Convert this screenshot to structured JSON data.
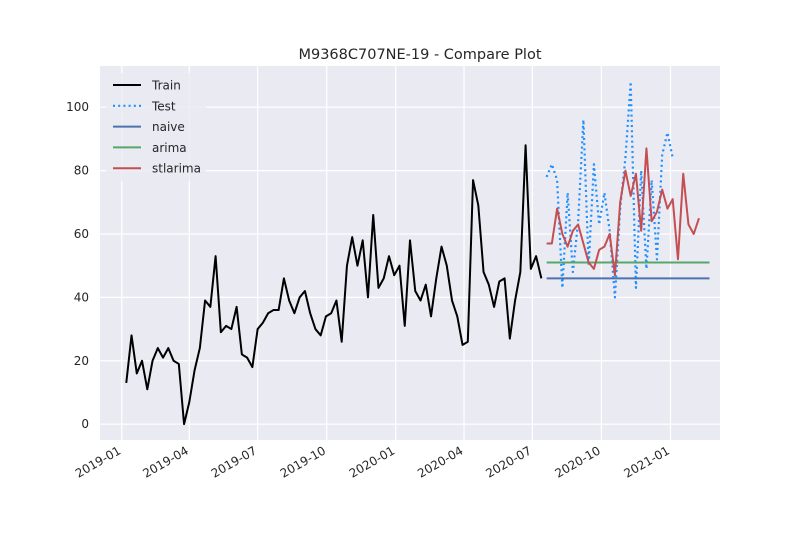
{
  "chart_data": {
    "type": "line",
    "title": "M9368C707NE-19 - Compare Plot",
    "xlabel": "",
    "ylabel": "",
    "x_axis_type": "date",
    "xlim": [
      "2018-12-03",
      "2021-03-08"
    ],
    "ylim": [
      -5,
      113
    ],
    "xticks": [
      {
        "date": "2019-01-01",
        "label": "2019-01"
      },
      {
        "date": "2019-04-01",
        "label": "2019-04"
      },
      {
        "date": "2019-07-01",
        "label": "2019-07"
      },
      {
        "date": "2019-10-01",
        "label": "2019-10"
      },
      {
        "date": "2020-01-01",
        "label": "2020-01"
      },
      {
        "date": "2020-04-01",
        "label": "2020-04"
      },
      {
        "date": "2020-07-01",
        "label": "2020-07"
      },
      {
        "date": "2020-10-01",
        "label": "2020-10"
      },
      {
        "date": "2021-01-01",
        "label": "2021-01"
      }
    ],
    "yticks": [
      0,
      20,
      40,
      60,
      80,
      100
    ],
    "grid": true,
    "legend_position": "top-left",
    "series": [
      {
        "name": "Train",
        "color": "#000000",
        "style": "solid",
        "points": [
          [
            "2019-01-07",
            13
          ],
          [
            "2019-01-14",
            28
          ],
          [
            "2019-01-21",
            16
          ],
          [
            "2019-01-28",
            20
          ],
          [
            "2019-02-04",
            11
          ],
          [
            "2019-02-11",
            20
          ],
          [
            "2019-02-18",
            24
          ],
          [
            "2019-02-25",
            21
          ],
          [
            "2019-03-04",
            24
          ],
          [
            "2019-03-11",
            20
          ],
          [
            "2019-03-18",
            19
          ],
          [
            "2019-03-25",
            0
          ],
          [
            "2019-04-01",
            7
          ],
          [
            "2019-04-08",
            17
          ],
          [
            "2019-04-15",
            24
          ],
          [
            "2019-04-22",
            39
          ],
          [
            "2019-04-29",
            37
          ],
          [
            "2019-05-06",
            53
          ],
          [
            "2019-05-13",
            29
          ],
          [
            "2019-05-20",
            31
          ],
          [
            "2019-05-27",
            30
          ],
          [
            "2019-06-03",
            37
          ],
          [
            "2019-06-10",
            22
          ],
          [
            "2019-06-17",
            21
          ],
          [
            "2019-06-24",
            18
          ],
          [
            "2019-07-01",
            30
          ],
          [
            "2019-07-08",
            32
          ],
          [
            "2019-07-15",
            35
          ],
          [
            "2019-07-22",
            36
          ],
          [
            "2019-07-29",
            36
          ],
          [
            "2019-08-05",
            46
          ],
          [
            "2019-08-12",
            39
          ],
          [
            "2019-08-19",
            35
          ],
          [
            "2019-08-26",
            40
          ],
          [
            "2019-09-02",
            42
          ],
          [
            "2019-09-09",
            35
          ],
          [
            "2019-09-16",
            30
          ],
          [
            "2019-09-23",
            28
          ],
          [
            "2019-09-30",
            34
          ],
          [
            "2019-10-07",
            35
          ],
          [
            "2019-10-14",
            39
          ],
          [
            "2019-10-21",
            26
          ],
          [
            "2019-10-28",
            50
          ],
          [
            "2019-11-04",
            59
          ],
          [
            "2019-11-11",
            50
          ],
          [
            "2019-11-18",
            58
          ],
          [
            "2019-11-25",
            40
          ],
          [
            "2019-12-02",
            66
          ],
          [
            "2019-12-09",
            43
          ],
          [
            "2019-12-16",
            46
          ],
          [
            "2019-12-23",
            53
          ],
          [
            "2019-12-30",
            47
          ],
          [
            "2020-01-06",
            50
          ],
          [
            "2020-01-13",
            31
          ],
          [
            "2020-01-20",
            58
          ],
          [
            "2020-01-27",
            42
          ],
          [
            "2020-02-03",
            39
          ],
          [
            "2020-02-10",
            44
          ],
          [
            "2020-02-17",
            34
          ],
          [
            "2020-02-24",
            46
          ],
          [
            "2020-03-02",
            56
          ],
          [
            "2020-03-09",
            50
          ],
          [
            "2020-03-16",
            39
          ],
          [
            "2020-03-23",
            34
          ],
          [
            "2020-03-30",
            25
          ],
          [
            "2020-04-06",
            26
          ],
          [
            "2020-04-13",
            77
          ],
          [
            "2020-04-20",
            69
          ],
          [
            "2020-04-27",
            48
          ],
          [
            "2020-05-04",
            44
          ],
          [
            "2020-05-11",
            37
          ],
          [
            "2020-05-18",
            45
          ],
          [
            "2020-05-25",
            46
          ],
          [
            "2020-06-01",
            27
          ],
          [
            "2020-06-08",
            39
          ],
          [
            "2020-06-15",
            48
          ],
          [
            "2020-06-22",
            88
          ],
          [
            "2020-06-29",
            49
          ],
          [
            "2020-07-06",
            53
          ],
          [
            "2020-07-13",
            46
          ]
        ]
      },
      {
        "name": "Test",
        "color": "#1e90ff",
        "style": "dotted",
        "points": [
          [
            "2020-07-20",
            78
          ],
          [
            "2020-07-27",
            82
          ],
          [
            "2020-08-03",
            77
          ],
          [
            "2020-08-10",
            43
          ],
          [
            "2020-08-17",
            73
          ],
          [
            "2020-08-24",
            48
          ],
          [
            "2020-08-31",
            64
          ],
          [
            "2020-09-07",
            96
          ],
          [
            "2020-09-14",
            50
          ],
          [
            "2020-09-21",
            82
          ],
          [
            "2020-09-28",
            63
          ],
          [
            "2020-10-05",
            73
          ],
          [
            "2020-10-12",
            61
          ],
          [
            "2020-10-19",
            40
          ],
          [
            "2020-10-26",
            68
          ],
          [
            "2020-11-02",
            84
          ],
          [
            "2020-11-09",
            108
          ],
          [
            "2020-11-16",
            43
          ],
          [
            "2020-11-23",
            80
          ],
          [
            "2020-11-30",
            49
          ],
          [
            "2020-12-07",
            77
          ],
          [
            "2020-12-14",
            52
          ],
          [
            "2020-12-21",
            85
          ],
          [
            "2020-12-28",
            92
          ],
          [
            "2021-01-04",
            84
          ]
        ]
      },
      {
        "name": "naive",
        "color": "#4c72b0",
        "style": "solid",
        "points": [
          [
            "2020-07-20",
            46
          ],
          [
            "2021-02-22",
            46
          ]
        ]
      },
      {
        "name": "arima",
        "color": "#55a868",
        "style": "solid",
        "points": [
          [
            "2020-07-20",
            51
          ],
          [
            "2021-02-22",
            51
          ]
        ]
      },
      {
        "name": "stlarima",
        "color": "#c44e52",
        "style": "solid",
        "points": [
          [
            "2020-07-20",
            57
          ],
          [
            "2020-07-27",
            57
          ],
          [
            "2020-08-03",
            68
          ],
          [
            "2020-08-10",
            60
          ],
          [
            "2020-08-17",
            56
          ],
          [
            "2020-08-24",
            61
          ],
          [
            "2020-08-31",
            63
          ],
          [
            "2020-09-07",
            57
          ],
          [
            "2020-09-14",
            51
          ],
          [
            "2020-09-21",
            49
          ],
          [
            "2020-09-28",
            55
          ],
          [
            "2020-10-05",
            56
          ],
          [
            "2020-10-12",
            60
          ],
          [
            "2020-10-19",
            47
          ],
          [
            "2020-10-26",
            70
          ],
          [
            "2020-11-02",
            80
          ],
          [
            "2020-11-09",
            72
          ],
          [
            "2020-11-16",
            79
          ],
          [
            "2020-11-23",
            61
          ],
          [
            "2020-11-30",
            87
          ],
          [
            "2020-12-07",
            64
          ],
          [
            "2020-12-14",
            67
          ],
          [
            "2020-12-21",
            74
          ],
          [
            "2020-12-28",
            68
          ],
          [
            "2021-01-04",
            71
          ],
          [
            "2021-01-11",
            52
          ],
          [
            "2021-01-18",
            79
          ],
          [
            "2021-01-25",
            63
          ],
          [
            "2021-02-01",
            60
          ],
          [
            "2021-02-08",
            65
          ]
        ]
      }
    ]
  }
}
